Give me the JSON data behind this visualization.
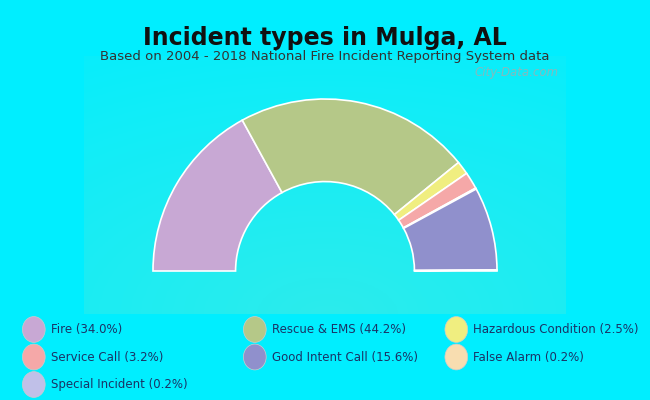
{
  "title": "Incident types in Mulga, AL",
  "subtitle": "Based on 2004 - 2018 National Fire Incident Reporting System data",
  "bg_cyan": "#00EEFF",
  "chart_bg_color": "#e8f2e0",
  "draw_order": [
    {
      "label": "Fire",
      "value": 34.0,
      "color": "#c8a8d4"
    },
    {
      "label": "Rescue&EMS",
      "value": 44.2,
      "color": "#b5c888"
    },
    {
      "label": "Hazardous",
      "value": 2.5,
      "color": "#f0ee80"
    },
    {
      "label": "Service",
      "value": 3.2,
      "color": "#f5a8a8"
    },
    {
      "label": "FalseAlarm",
      "value": 0.2,
      "color": "#f8ddb0"
    },
    {
      "label": "GoodIntent",
      "value": 15.6,
      "color": "#9090cc"
    },
    {
      "label": "Special",
      "value": 0.2,
      "color": "#c0c0e8"
    }
  ],
  "legend": [
    {
      "label": "Fire (34.0%)",
      "color": "#c8a8d4"
    },
    {
      "label": "Service Call (3.2%)",
      "color": "#f5a8a8"
    },
    {
      "label": "Special Incident (0.2%)",
      "color": "#c0c0e8"
    },
    {
      "label": "Rescue & EMS (44.2%)",
      "color": "#b5c888"
    },
    {
      "label": "Good Intent Call (15.6%)",
      "color": "#9090cc"
    },
    {
      "label": "Hazardous Condition (2.5%)",
      "color": "#f0ee80"
    },
    {
      "label": "False Alarm (0.2%)",
      "color": "#f8ddb0"
    }
  ],
  "watermark": "City-Data.com",
  "outer_r": 1.0,
  "inner_r": 0.52,
  "title_fontsize": 17,
  "subtitle_fontsize": 9.5,
  "legend_fontsize": 8.5
}
